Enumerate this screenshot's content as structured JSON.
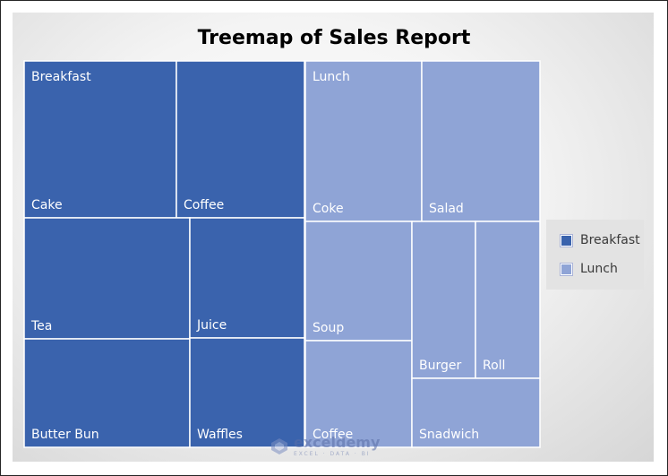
{
  "chart_data": {
    "type": "treemap",
    "title": "Treemap of Sales Report",
    "groups": [
      {
        "name": "Breakfast",
        "color": "#3a63ad",
        "items": [
          {
            "name": "Cake",
            "value": 30
          },
          {
            "name": "Coffee",
            "value": 25
          },
          {
            "name": "Tea",
            "value": 25
          },
          {
            "name": "Juice",
            "value": 18
          },
          {
            "name": "Butter Bun",
            "value": 25
          },
          {
            "name": "Waffles",
            "value": 17
          }
        ]
      },
      {
        "name": "Lunch",
        "color": "#8fa4d6",
        "items": [
          {
            "name": "Coke",
            "value": 25
          },
          {
            "name": "Salad",
            "value": 25
          },
          {
            "name": "Soup",
            "value": 18
          },
          {
            "name": "Coffee",
            "value": 16
          },
          {
            "name": "Burger",
            "value": 11
          },
          {
            "name": "Roll",
            "value": 11
          },
          {
            "name": "Snadwich",
            "value": 11
          }
        ]
      }
    ],
    "legend": {
      "position": "right",
      "entries": [
        "Breakfast",
        "Lunch"
      ]
    }
  },
  "watermark": {
    "name": "exceldemy",
    "tagline": "EXCEL · DATA · BI"
  }
}
